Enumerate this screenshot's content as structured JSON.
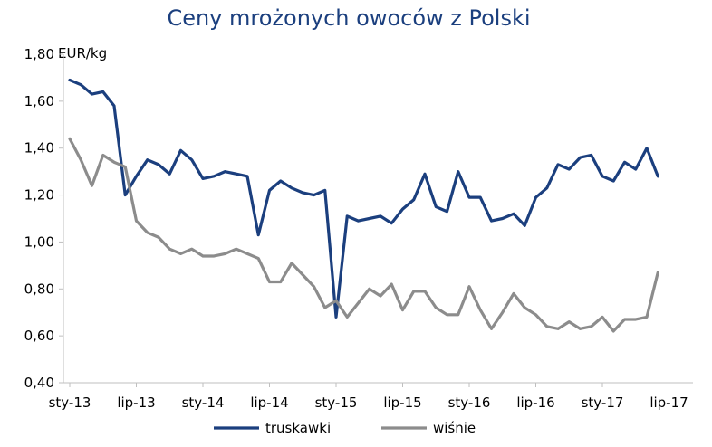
{
  "chart_data": {
    "type": "line",
    "title": "Ceny mrożonych owoców z Polski",
    "ylabel": "EUR/kg",
    "xlabel": "",
    "ylim": [
      0.4,
      1.8
    ],
    "yticks": [
      "0,40",
      "0,60",
      "0,80",
      "1,00",
      "1,20",
      "1,40",
      "1,60",
      "1,80"
    ],
    "ytick_values": [
      0.4,
      0.6,
      0.8,
      1.0,
      1.2,
      1.4,
      1.6,
      1.8
    ],
    "xticks": [
      "sty-13",
      "lip-13",
      "sty-14",
      "lip-14",
      "sty-15",
      "lip-15",
      "sty-16",
      "lip-16",
      "sty-17",
      "lip-17"
    ],
    "xtick_months": [
      0,
      6,
      12,
      18,
      24,
      30,
      36,
      42,
      48,
      54
    ],
    "x_months": [
      0,
      1,
      2,
      3,
      4,
      5,
      6,
      7,
      8,
      9,
      10,
      11,
      12,
      13,
      14,
      15,
      16,
      17,
      18,
      19,
      20,
      21,
      22,
      23,
      24,
      25,
      26,
      27,
      28,
      29,
      30,
      31,
      32,
      33,
      34,
      35,
      36,
      37,
      38,
      39,
      40,
      41,
      42,
      43,
      44,
      45,
      46,
      47,
      48,
      49,
      50,
      51,
      52,
      53,
      54
    ],
    "legend_position": "bottom",
    "grid": false,
    "series": [
      {
        "name": "truskawki",
        "color": "#1b3f7e",
        "values": [
          1.69,
          1.67,
          1.63,
          1.64,
          1.58,
          1.2,
          1.28,
          1.35,
          1.33,
          1.29,
          1.39,
          1.35,
          1.27,
          1.28,
          1.3,
          1.29,
          1.28,
          1.03,
          1.22,
          1.26,
          1.23,
          1.21,
          1.2,
          1.22,
          0.68,
          1.11,
          1.09,
          1.1,
          1.11,
          1.08,
          1.14,
          1.18,
          1.29,
          1.15,
          1.13,
          1.3,
          1.19,
          1.19,
          1.09,
          1.1,
          1.12,
          1.07,
          1.19,
          1.23,
          1.33,
          1.31,
          1.36,
          1.37,
          1.28,
          1.26,
          1.34,
          1.31,
          1.4,
          1.28,
          null
        ]
      },
      {
        "name": "wiśnie",
        "color": "#8c8c8c",
        "values": [
          1.44,
          1.35,
          1.24,
          1.37,
          1.34,
          1.32,
          1.09,
          1.04,
          1.02,
          0.97,
          0.95,
          0.97,
          0.94,
          0.94,
          0.95,
          0.97,
          0.95,
          0.93,
          0.83,
          0.83,
          0.91,
          0.86,
          0.81,
          0.72,
          0.75,
          0.68,
          0.74,
          0.8,
          0.77,
          0.82,
          0.71,
          0.79,
          0.79,
          0.72,
          0.69,
          0.69,
          0.81,
          0.71,
          0.63,
          0.7,
          0.78,
          0.72,
          0.69,
          0.64,
          0.63,
          0.66,
          0.63,
          0.64,
          0.68,
          0.62,
          0.67,
          0.67,
          0.68,
          0.87,
          null
        ]
      }
    ]
  }
}
